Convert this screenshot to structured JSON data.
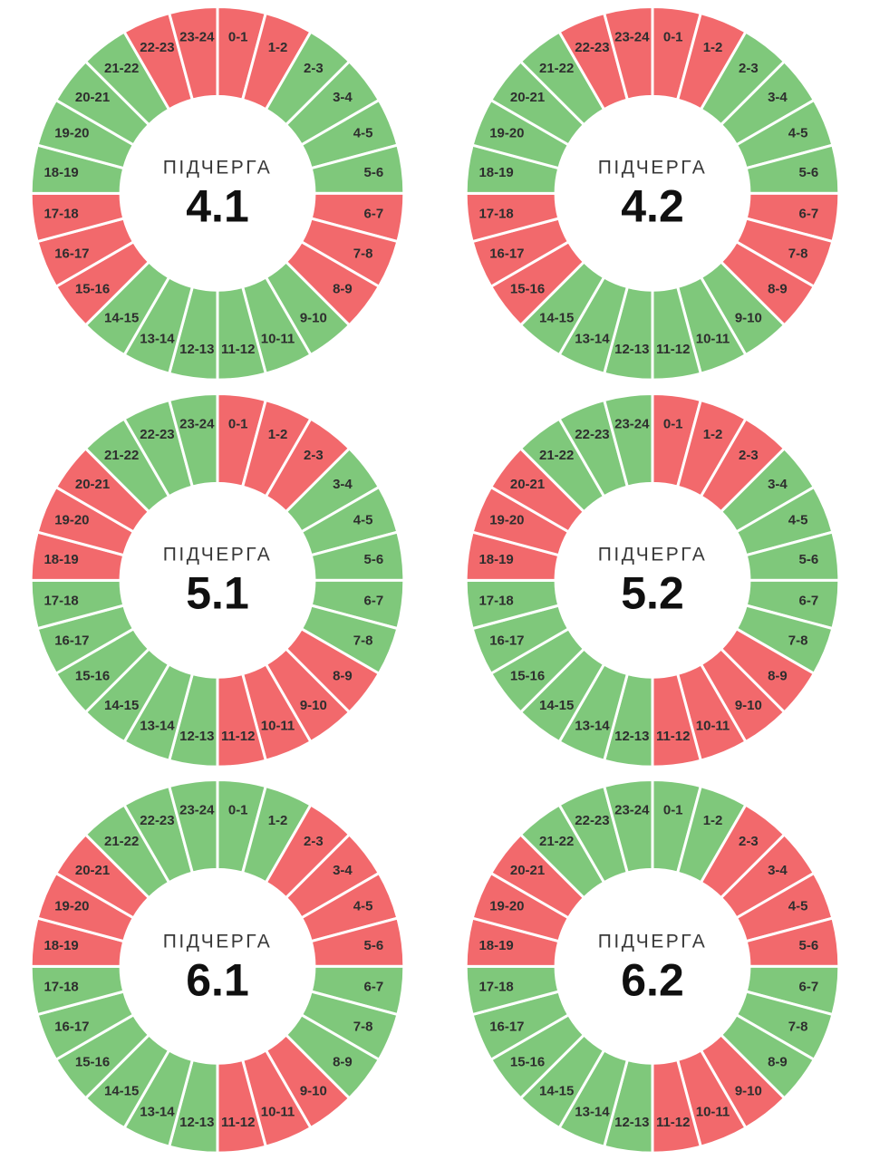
{
  "page": {
    "background": "#ffffff"
  },
  "colors": {
    "green": "#7fc87b",
    "red": "#f2696c",
    "gap": "#ffffff",
    "hour_label": "#2e2e2e",
    "center_title": "#383838",
    "center_number": "#101010"
  },
  "chart_data": [
    {
      "type": "pie",
      "variant": "donut",
      "center_title": "ПІДЧЕРГА",
      "center_number": "4.1",
      "segment_unit_hours": 1,
      "categories": [
        "0-1",
        "1-2",
        "2-3",
        "3-4",
        "4-5",
        "5-6",
        "6-7",
        "7-8",
        "8-9",
        "9-10",
        "10-11",
        "11-12",
        "12-13",
        "13-14",
        "14-15",
        "15-16",
        "16-17",
        "17-18",
        "18-19",
        "19-20",
        "20-21",
        "21-22",
        "22-23",
        "23-24"
      ],
      "states": [
        "red",
        "red",
        "green",
        "green",
        "green",
        "green",
        "red",
        "red",
        "red",
        "green",
        "green",
        "green",
        "green",
        "green",
        "green",
        "red",
        "red",
        "red",
        "green",
        "green",
        "green",
        "green",
        "red",
        "red"
      ]
    },
    {
      "type": "pie",
      "variant": "donut",
      "center_title": "ПІДЧЕРГА",
      "center_number": "4.2",
      "segment_unit_hours": 1,
      "categories": [
        "0-1",
        "1-2",
        "2-3",
        "3-4",
        "4-5",
        "5-6",
        "6-7",
        "7-8",
        "8-9",
        "9-10",
        "10-11",
        "11-12",
        "12-13",
        "13-14",
        "14-15",
        "15-16",
        "16-17",
        "17-18",
        "18-19",
        "19-20",
        "20-21",
        "21-22",
        "22-23",
        "23-24"
      ],
      "states": [
        "red",
        "red",
        "green",
        "green",
        "green",
        "green",
        "red",
        "red",
        "red",
        "green",
        "green",
        "green",
        "green",
        "green",
        "green",
        "red",
        "red",
        "red",
        "green",
        "green",
        "green",
        "green",
        "red",
        "red"
      ]
    },
    {
      "type": "pie",
      "variant": "donut",
      "center_title": "ПІДЧЕРГА",
      "center_number": "5.1",
      "segment_unit_hours": 1,
      "categories": [
        "0-1",
        "1-2",
        "2-3",
        "3-4",
        "4-5",
        "5-6",
        "6-7",
        "7-8",
        "8-9",
        "9-10",
        "10-11",
        "11-12",
        "12-13",
        "13-14",
        "14-15",
        "15-16",
        "16-17",
        "17-18",
        "18-19",
        "19-20",
        "20-21",
        "21-22",
        "22-23",
        "23-24"
      ],
      "states": [
        "red",
        "red",
        "red",
        "green",
        "green",
        "green",
        "green",
        "green",
        "red",
        "red",
        "red",
        "red",
        "green",
        "green",
        "green",
        "green",
        "green",
        "green",
        "red",
        "red",
        "red",
        "green",
        "green",
        "green"
      ]
    },
    {
      "type": "pie",
      "variant": "donut",
      "center_title": "ПІДЧЕРГА",
      "center_number": "5.2",
      "segment_unit_hours": 1,
      "categories": [
        "0-1",
        "1-2",
        "2-3",
        "3-4",
        "4-5",
        "5-6",
        "6-7",
        "7-8",
        "8-9",
        "9-10",
        "10-11",
        "11-12",
        "12-13",
        "13-14",
        "14-15",
        "15-16",
        "16-17",
        "17-18",
        "18-19",
        "19-20",
        "20-21",
        "21-22",
        "22-23",
        "23-24"
      ],
      "states": [
        "red",
        "red",
        "red",
        "green",
        "green",
        "green",
        "green",
        "green",
        "red",
        "red",
        "red",
        "red",
        "green",
        "green",
        "green",
        "green",
        "green",
        "green",
        "red",
        "red",
        "red",
        "green",
        "green",
        "green"
      ]
    },
    {
      "type": "pie",
      "variant": "donut",
      "center_title": "ПІДЧЕРГА",
      "center_number": "6.1",
      "segment_unit_hours": 1,
      "categories": [
        "0-1",
        "1-2",
        "2-3",
        "3-4",
        "4-5",
        "5-6",
        "6-7",
        "7-8",
        "8-9",
        "9-10",
        "10-11",
        "11-12",
        "12-13",
        "13-14",
        "14-15",
        "15-16",
        "16-17",
        "17-18",
        "18-19",
        "19-20",
        "20-21",
        "21-22",
        "22-23",
        "23-24"
      ],
      "states": [
        "green",
        "green",
        "red",
        "red",
        "red",
        "red",
        "green",
        "green",
        "green",
        "red",
        "red",
        "red",
        "green",
        "green",
        "green",
        "green",
        "green",
        "green",
        "red",
        "red",
        "red",
        "green",
        "green",
        "green"
      ]
    },
    {
      "type": "pie",
      "variant": "donut",
      "center_title": "ПІДЧЕРГА",
      "center_number": "6.2",
      "segment_unit_hours": 1,
      "categories": [
        "0-1",
        "1-2",
        "2-3",
        "3-4",
        "4-5",
        "5-6",
        "6-7",
        "7-8",
        "8-9",
        "9-10",
        "10-11",
        "11-12",
        "12-13",
        "13-14",
        "14-15",
        "15-16",
        "16-17",
        "17-18",
        "18-19",
        "19-20",
        "20-21",
        "21-22",
        "22-23",
        "23-24"
      ],
      "states": [
        "green",
        "green",
        "red",
        "red",
        "red",
        "red",
        "green",
        "green",
        "green",
        "red",
        "red",
        "red",
        "green",
        "green",
        "green",
        "green",
        "green",
        "green",
        "red",
        "red",
        "red",
        "green",
        "green",
        "green"
      ]
    }
  ]
}
